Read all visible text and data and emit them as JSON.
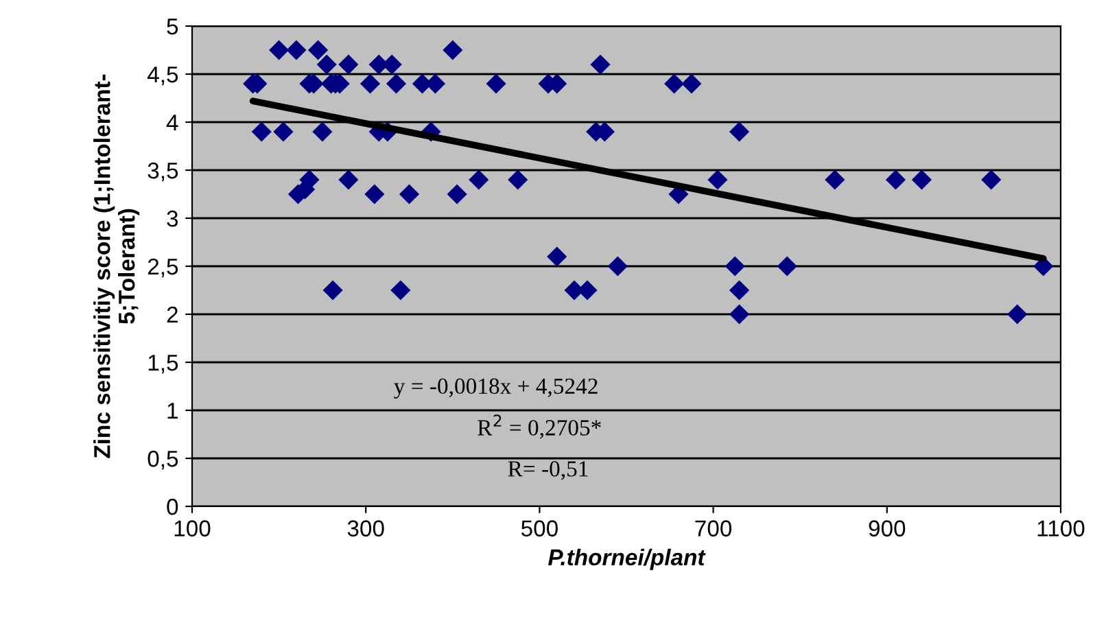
{
  "chart_data": {
    "type": "scatter",
    "xlabel": "P.thornei/plant",
    "ylabel": "Zinc sensitivitiy score (1;Intolerant-\n5;Tolerant)",
    "xlim": [
      100,
      1100
    ],
    "xticks": [
      100,
      300,
      500,
      700,
      900,
      1100
    ],
    "ylim": [
      0,
      5
    ],
    "yticks": [
      0,
      {
        "value": 0.5,
        "label": "0,5"
      },
      1,
      {
        "value": 1.5,
        "label": "1,5"
      },
      2,
      {
        "value": 2.5,
        "label": "2,5"
      },
      3,
      {
        "value": 3.5,
        "label": "3,5"
      },
      4,
      {
        "value": 4.5,
        "label": "4,5"
      },
      5
    ],
    "grid": "y",
    "series": [
      {
        "color": "#000080",
        "marker": "diamond",
        "x": [
          170,
          175,
          180,
          200,
          205,
          220,
          222,
          230,
          235,
          235,
          240,
          245,
          250,
          255,
          260,
          262,
          265,
          270,
          280,
          280,
          305,
          310,
          315,
          315,
          325,
          330,
          335,
          340,
          350,
          365,
          375,
          380,
          400,
          405,
          430,
          450,
          475,
          510,
          520,
          520,
          540,
          555,
          565,
          570,
          575,
          590,
          655,
          660,
          675,
          705,
          725,
          730,
          730,
          730,
          785,
          840,
          910,
          940,
          1020,
          1050,
          1080
        ],
        "values": [
          4.4,
          4.4,
          3.9,
          4.75,
          3.9,
          4.75,
          3.25,
          3.3,
          4.4,
          3.4,
          4.4,
          4.75,
          3.9,
          4.6,
          4.4,
          2.25,
          4.4,
          4.4,
          4.6,
          3.4,
          4.4,
          3.25,
          4.6,
          3.9,
          3.9,
          4.6,
          4.4,
          2.25,
          3.25,
          4.4,
          3.9,
          4.4,
          4.75,
          3.25,
          3.4,
          4.4,
          3.4,
          4.4,
          2.6,
          4.4,
          2.25,
          2.25,
          3.9,
          4.6,
          3.9,
          2.5,
          4.4,
          3.25,
          4.4,
          3.4,
          2.5,
          3.9,
          2.25,
          2.0,
          2.5,
          3.4,
          3.4,
          3.4,
          3.4,
          2.0,
          2.5
        ]
      },
      {
        "type": "line",
        "color": "#000000",
        "marker": "none",
        "x": [
          170,
          1080
        ],
        "values": [
          4.22,
          2.58
        ]
      }
    ],
    "annotations": [
      "y = -0,0018x + 4,5242",
      "R$^{2}$ = 0,2705*",
      "R= -0,51"
    ]
  }
}
